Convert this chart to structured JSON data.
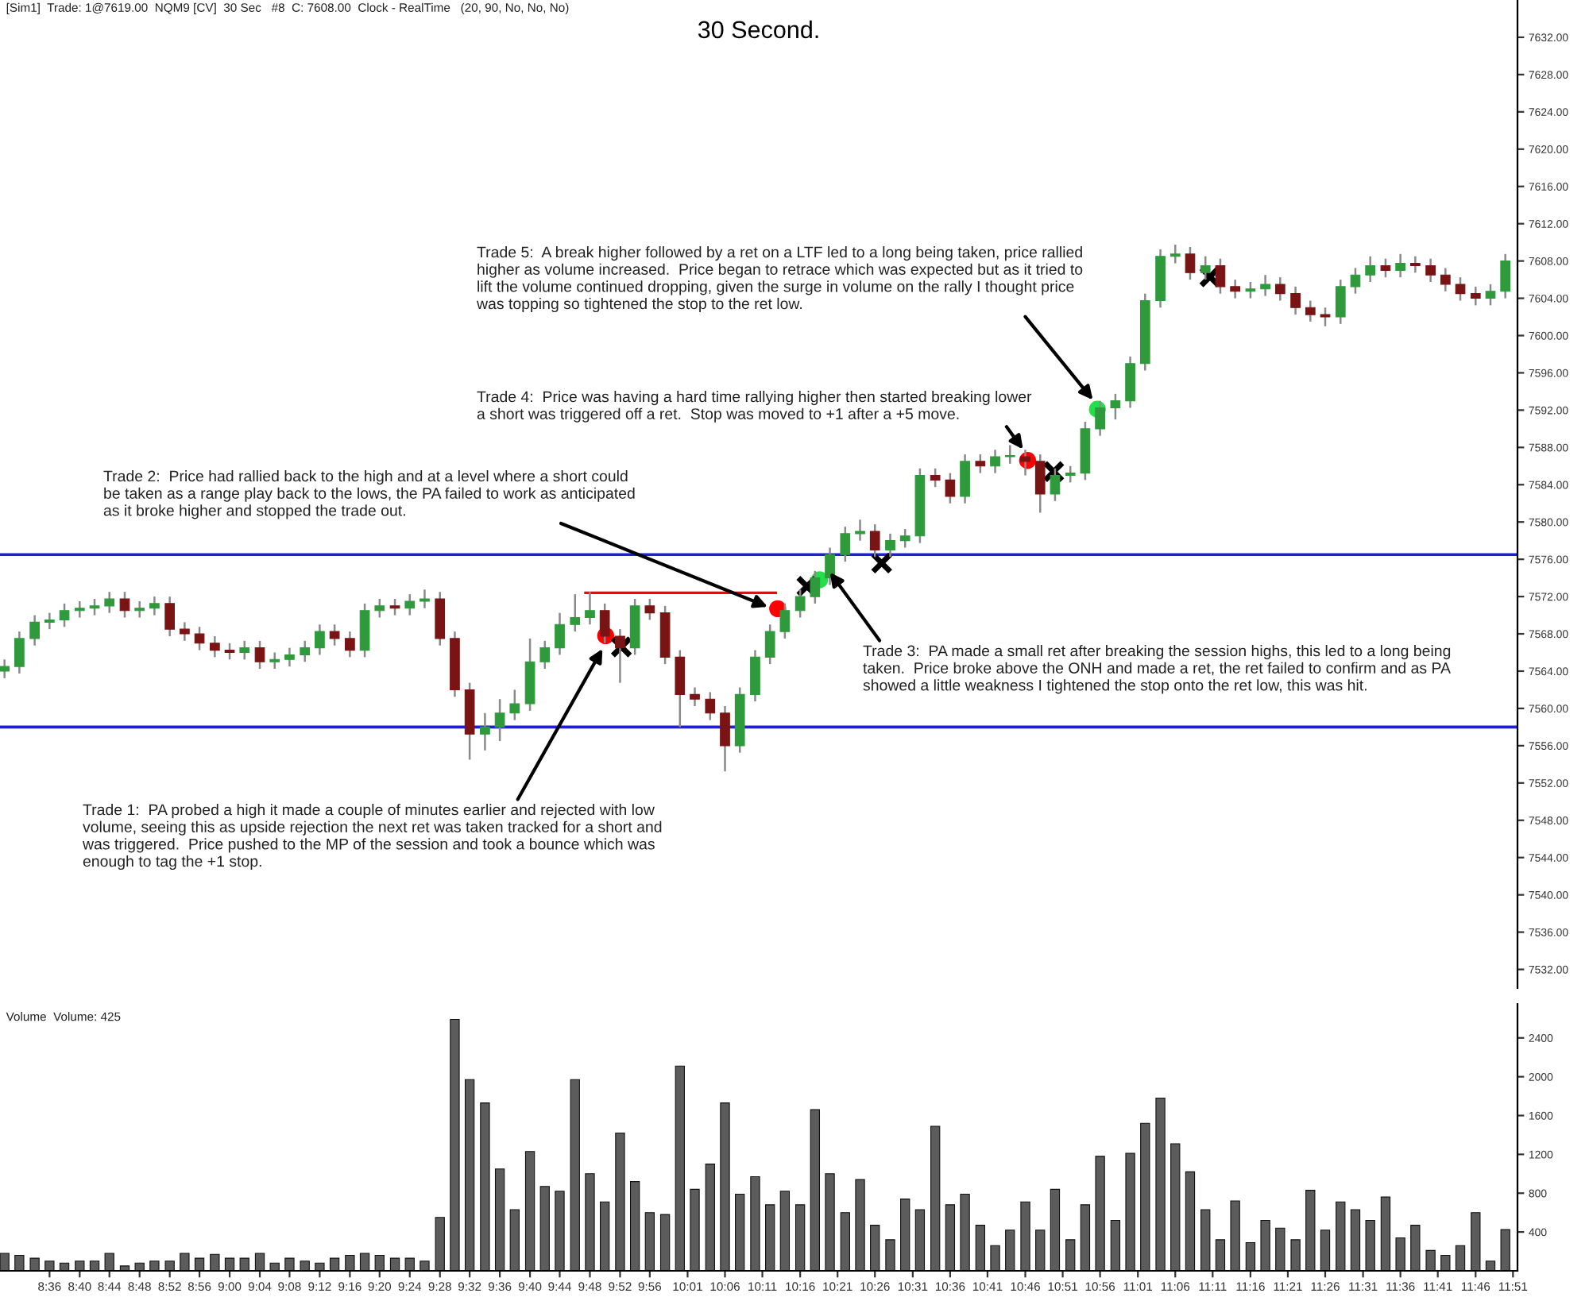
{
  "chart_data": [
    {
      "type": "candlestick",
      "title": "30 Second.",
      "tick_labels": "y",
      "x": [
        8.5,
        8.533,
        8.567,
        8.6,
        8.633,
        8.667,
        8.7,
        8.733,
        8.767,
        8.8,
        8.833,
        8.867,
        8.9,
        8.933,
        8.967,
        9.0,
        9.033,
        9.067,
        9.1,
        9.133,
        9.167,
        9.2,
        9.233,
        9.267,
        9.3,
        9.333,
        9.367,
        9.4,
        9.433,
        9.467,
        9.5,
        9.533,
        9.567,
        9.6,
        9.633,
        9.667,
        9.7,
        9.733,
        9.767,
        9.8,
        9.833,
        9.867,
        9.9,
        9.933,
        9.967,
        10.0,
        10.033,
        10.067,
        10.1,
        10.133,
        10.167,
        10.2,
        10.233,
        10.267,
        10.3,
        10.333,
        10.367,
        10.4,
        10.433,
        10.467,
        10.5,
        10.533,
        10.567,
        10.6,
        10.633,
        10.667,
        10.7,
        10.733,
        10.767,
        10.8,
        10.833,
        10.867,
        10.9,
        10.933,
        10.967,
        11.0,
        11.033,
        11.067,
        11.1,
        11.133,
        11.167,
        11.2,
        11.233,
        11.267,
        11.3,
        11.333,
        11.367,
        11.4,
        11.433,
        11.467,
        11.5,
        11.533,
        11.567,
        11.6,
        11.633,
        11.667,
        11.7,
        11.733,
        11.767,
        11.8,
        11.833
      ],
      "ohlc": [
        [
          7564.0,
          7565.25,
          7563.25,
          7564.5
        ],
        [
          7564.5,
          7568.25,
          7563.75,
          7567.5
        ],
        [
          7567.5,
          7570.0,
          7566.75,
          7569.25
        ],
        [
          7569.25,
          7570.25,
          7568.5,
          7569.5
        ],
        [
          7569.5,
          7571.25,
          7568.75,
          7570.5
        ],
        [
          7570.5,
          7571.5,
          7569.75,
          7570.75
        ],
        [
          7570.75,
          7571.75,
          7570.0,
          7571.0
        ],
        [
          7571.0,
          7572.5,
          7570.25,
          7571.75
        ],
        [
          7571.75,
          7572.5,
          7569.75,
          7570.5
        ],
        [
          7570.5,
          7571.5,
          7569.75,
          7570.75
        ],
        [
          7570.75,
          7572.0,
          7570.0,
          7571.25
        ],
        [
          7571.25,
          7572.0,
          7567.75,
          7568.5
        ],
        [
          7568.5,
          7569.25,
          7567.25,
          7568.0
        ],
        [
          7568.0,
          7568.75,
          7566.25,
          7567.0
        ],
        [
          7567.0,
          7567.75,
          7565.5,
          7566.25
        ],
        [
          7566.25,
          7567.0,
          7565.25,
          7566.0
        ],
        [
          7566.0,
          7567.25,
          7565.25,
          7566.5
        ],
        [
          7566.5,
          7567.25,
          7564.25,
          7565.0
        ],
        [
          7565.0,
          7566.0,
          7564.25,
          7565.25
        ],
        [
          7565.25,
          7566.5,
          7564.5,
          7565.75
        ],
        [
          7565.75,
          7567.25,
          7565.0,
          7566.5
        ],
        [
          7566.5,
          7569.0,
          7565.75,
          7568.25
        ],
        [
          7568.25,
          7569.0,
          7566.75,
          7567.5
        ],
        [
          7567.5,
          7568.25,
          7565.5,
          7566.25
        ],
        [
          7566.25,
          7571.25,
          7565.5,
          7570.5
        ],
        [
          7570.5,
          7571.75,
          7569.75,
          7571.0
        ],
        [
          7571.0,
          7571.75,
          7570.0,
          7570.75
        ],
        [
          7570.75,
          7572.25,
          7570.0,
          7571.5
        ],
        [
          7571.5,
          7572.75,
          7570.75,
          7571.75
        ],
        [
          7571.75,
          7572.5,
          7566.75,
          7567.5
        ],
        [
          7567.5,
          7568.25,
          7561.25,
          7562.0
        ],
        [
          7562.0,
          7562.75,
          7554.5,
          7557.25
        ],
        [
          7557.25,
          7559.5,
          7555.5,
          7558.0
        ],
        [
          7558.0,
          7561.0,
          7556.5,
          7559.5
        ],
        [
          7559.5,
          7562.0,
          7558.75,
          7560.5
        ],
        [
          7560.5,
          7567.5,
          7559.75,
          7565.0
        ],
        [
          7565.0,
          7567.25,
          7564.25,
          7566.5
        ],
        [
          7566.5,
          7570.25,
          7565.75,
          7569.0
        ],
        [
          7569.0,
          7572.25,
          7568.25,
          7569.75
        ],
        [
          7569.75,
          7572.5,
          7569.0,
          7570.5
        ],
        [
          7570.5,
          7571.25,
          7567.0,
          7567.75
        ],
        [
          7567.75,
          7568.5,
          7562.75,
          7566.5
        ],
        [
          7566.5,
          7571.75,
          7565.75,
          7571.0
        ],
        [
          7571.0,
          7571.75,
          7569.5,
          7570.25
        ],
        [
          7570.25,
          7571.0,
          7564.75,
          7565.5
        ],
        [
          7565.5,
          7566.25,
          7558.0,
          7561.5
        ],
        [
          7561.5,
          7562.25,
          7560.25,
          7561.0
        ],
        [
          7561.0,
          7561.75,
          7558.75,
          7559.5
        ],
        [
          7559.5,
          7560.25,
          7553.25,
          7556.0
        ],
        [
          7556.0,
          7562.25,
          7555.25,
          7561.5
        ],
        [
          7561.5,
          7566.25,
          7560.75,
          7565.5
        ],
        [
          7565.5,
          7569.0,
          7564.75,
          7568.25
        ],
        [
          7568.25,
          7571.25,
          7567.5,
          7570.5
        ],
        [
          7570.5,
          7572.75,
          7569.75,
          7572.0
        ],
        [
          7572.0,
          7574.75,
          7571.25,
          7574.0
        ],
        [
          7574.0,
          7577.25,
          7573.25,
          7576.5
        ],
        [
          7576.5,
          7579.5,
          7575.75,
          7578.75
        ],
        [
          7578.75,
          7580.25,
          7578.0,
          7579.0
        ],
        [
          7579.0,
          7579.75,
          7576.25,
          7577.0
        ],
        [
          7577.0,
          7578.75,
          7576.25,
          7578.0
        ],
        [
          7578.0,
          7579.25,
          7577.25,
          7578.5
        ],
        [
          7578.5,
          7585.75,
          7577.75,
          7585.0
        ],
        [
          7585.0,
          7585.75,
          7583.75,
          7584.5
        ],
        [
          7584.5,
          7585.25,
          7582.0,
          7582.75
        ],
        [
          7582.75,
          7587.25,
          7582.0,
          7586.5
        ],
        [
          7586.5,
          7587.25,
          7585.25,
          7586.0
        ],
        [
          7586.0,
          7587.75,
          7585.25,
          7587.0
        ],
        [
          7587.0,
          7588.25,
          7586.25,
          7587.0
        ],
        [
          7587.0,
          7587.75,
          7585.0,
          7586.5
        ],
        [
          7586.5,
          7587.25,
          7581.0,
          7583.0
        ],
        [
          7583.0,
          7585.75,
          7582.25,
          7585.0
        ],
        [
          7585.0,
          7586.0,
          7584.25,
          7585.25
        ],
        [
          7585.25,
          7590.75,
          7584.5,
          7590.0
        ],
        [
          7590.0,
          7593.0,
          7589.25,
          7592.25
        ],
        [
          7592.25,
          7593.75,
          7591.0,
          7593.0
        ],
        [
          7593.0,
          7597.75,
          7592.25,
          7597.0
        ],
        [
          7597.0,
          7604.5,
          7596.25,
          7603.75
        ],
        [
          7603.75,
          7609.25,
          7603.0,
          7608.5
        ],
        [
          7608.5,
          7609.75,
          7607.75,
          7608.75
        ],
        [
          7608.75,
          7609.5,
          7606.0,
          7606.75
        ],
        [
          7606.75,
          7608.5,
          7606.0,
          7607.5
        ],
        [
          7607.5,
          7608.25,
          7604.5,
          7605.25
        ],
        [
          7605.25,
          7606.0,
          7604.0,
          7604.75
        ],
        [
          7604.75,
          7605.75,
          7604.0,
          7605.0
        ],
        [
          7605.0,
          7606.5,
          7604.25,
          7605.5
        ],
        [
          7605.5,
          7606.25,
          7603.75,
          7604.5
        ],
        [
          7604.5,
          7605.25,
          7602.25,
          7603.0
        ],
        [
          7603.0,
          7603.75,
          7601.5,
          7602.25
        ],
        [
          7602.25,
          7603.0,
          7601.0,
          7602.0
        ],
        [
          7602.0,
          7606.0,
          7601.25,
          7605.25
        ],
        [
          7605.25,
          7607.25,
          7604.5,
          7606.5
        ],
        [
          7606.5,
          7608.5,
          7605.75,
          7607.5
        ],
        [
          7607.5,
          7608.25,
          7606.25,
          7607.0
        ],
        [
          7607.0,
          7608.75,
          7606.25,
          7607.75
        ],
        [
          7607.75,
          7608.5,
          7606.75,
          7607.5
        ],
        [
          7607.5,
          7608.25,
          7605.75,
          7606.5
        ],
        [
          7606.5,
          7607.25,
          7604.75,
          7605.5
        ],
        [
          7605.5,
          7606.25,
          7603.75,
          7604.5
        ],
        [
          7604.5,
          7605.25,
          7603.25,
          7604.0
        ],
        [
          7604.0,
          7605.5,
          7603.25,
          7604.75
        ],
        [
          7604.75,
          7608.75,
          7604.0,
          7608.0
        ]
      ],
      "series": [
        {
          "type": "scatter",
          "marker": "circle",
          "color": "#ff0000",
          "x": [
            9.835,
            10.217,
            10.772
          ],
          "values": [
            7567.8,
            7570.7,
            7586.6
          ]
        },
        {
          "type": "scatter",
          "marker": "circle",
          "color": "#22e04a",
          "x": [
            10.31,
            10.927
          ],
          "values": [
            7573.8,
            7592.1
          ]
        },
        {
          "type": "scatter",
          "marker": "cross",
          "color": "#000000",
          "x": [
            9.87,
            10.282,
            10.448,
            10.83,
            11.177
          ],
          "values": [
            7566.6,
            7573.1,
            7575.6,
            7585.4,
            7606.3
          ]
        },
        {
          "type": "line",
          "line_style": "solid",
          "color": "#ff0000",
          "x": [
            9.79,
            10.213
          ],
          "values": [
            7572.4,
            7572.4
          ]
        }
      ],
      "ref_lines": [
        {
          "axis": "y",
          "value": 7576.5,
          "color": "#1f1fd6",
          "line_style": "solid"
        },
        {
          "axis": "y",
          "value": 7558.0,
          "color": "#1f1fd6",
          "line_style": "solid"
        }
      ],
      "xlim": [
        8.49,
        11.86
      ],
      "ylim": [
        7530,
        7636
      ],
      "yticks": [
        {
          "value": 7532,
          "label": "7532.00"
        },
        {
          "value": 7536,
          "label": "7536.00"
        },
        {
          "value": 7540,
          "label": "7540.00"
        },
        {
          "value": 7544,
          "label": "7544.00"
        },
        {
          "value": 7548,
          "label": "7548.00"
        },
        {
          "value": 7552,
          "label": "7552.00"
        },
        {
          "value": 7556,
          "label": "7556.00"
        },
        {
          "value": 7560,
          "label": "7560.00"
        },
        {
          "value": 7564,
          "label": "7564.00"
        },
        {
          "value": 7568,
          "label": "7568.00"
        },
        {
          "value": 7572,
          "label": "7572.00"
        },
        {
          "value": 7576,
          "label": "7576.00"
        },
        {
          "value": 7580,
          "label": "7580.00"
        },
        {
          "value": 7584,
          "label": "7584.00"
        },
        {
          "value": 7588,
          "label": "7588.00"
        },
        {
          "value": 7592,
          "label": "7592.00"
        },
        {
          "value": 7596,
          "label": "7596.00"
        },
        {
          "value": 7600,
          "label": "7600.00"
        },
        {
          "value": 7604,
          "label": "7604.00"
        },
        {
          "value": 7608,
          "label": "7608.00"
        },
        {
          "value": 7612,
          "label": "7612.00"
        },
        {
          "value": 7616,
          "label": "7616.00"
        },
        {
          "value": 7620,
          "label": "7620.00"
        },
        {
          "value": 7624,
          "label": "7624.00"
        },
        {
          "value": 7628,
          "label": "7628.00"
        },
        {
          "value": 7632,
          "label": "7632.00"
        }
      ],
      "annotations": [
        "[Sim1]  Trade: 1@7619.00  NQM9 [CV]  30 Sec   #8  C: 7608.00  Clock - RealTime   (20, 90, No, No, No)",
        {
          "text": "Trade 5:  A break higher followed by a ret on a LTF led to a long being taken, price rallied\nhigher as volume increased.  Price began to retrace which was expected but as it tried to\nlift the volume continued dropping, given the surge in volume on the rally I thought price\nwas topping so tightened the stop to the ret low.",
          "x": 10.917,
          "y": 7593.1
        },
        {
          "text": "Trade 4:  Price was having a hard time rallying higher then started breaking lower\na short was triggered off a ret.  Stop was moved to +1 after a +5 move.",
          "x": 10.762,
          "y": 7587.8
        },
        {
          "text": "Trade 2:  Price had rallied back to the high and at a level where a short could\nbe taken as a range play back to the lows, the PA failed to work as anticipated\nas it broke higher and stopped the trade out.",
          "x": 10.195,
          "y": 7570.9
        },
        {
          "text": "Trade 3:  PA made a small ret after breaking the session highs, this led to a long being\ntaken.  Price broke above the ONH and made a ret, the ret failed to confirm and as PA\nshowed a little weakness I tightened the stop onto the ret low, this was hit.",
          "x": 10.333,
          "y": 7574.6
        },
        {
          "text": "Trade 1:  PA probed a high it made a couple of minutes earlier and rejected with low\nvolume, seeing this as upside rejection the next ret was taken tracked for a short and\nwas triggered.  Price pushed to the MP of the session and took a bounce which was\nenough to tag the +1 stop.",
          "x": 9.828,
          "y": 7566.4
        }
      ]
    },
    {
      "type": "bar",
      "color": "#5c5c5c",
      "x": [
        8.5,
        8.533,
        8.567,
        8.6,
        8.633,
        8.667,
        8.7,
        8.733,
        8.767,
        8.8,
        8.833,
        8.867,
        8.9,
        8.933,
        8.967,
        9.0,
        9.033,
        9.067,
        9.1,
        9.133,
        9.167,
        9.2,
        9.233,
        9.267,
        9.3,
        9.333,
        9.367,
        9.4,
        9.433,
        9.467,
        9.5,
        9.533,
        9.567,
        9.6,
        9.633,
        9.667,
        9.7,
        9.733,
        9.767,
        9.8,
        9.833,
        9.867,
        9.9,
        9.933,
        9.967,
        10.0,
        10.033,
        10.067,
        10.1,
        10.133,
        10.167,
        10.2,
        10.233,
        10.267,
        10.3,
        10.333,
        10.367,
        10.4,
        10.433,
        10.467,
        10.5,
        10.533,
        10.567,
        10.6,
        10.633,
        10.667,
        10.7,
        10.733,
        10.767,
        10.8,
        10.833,
        10.867,
        10.9,
        10.933,
        10.967,
        11.0,
        11.033,
        11.067,
        11.1,
        11.133,
        11.167,
        11.2,
        11.233,
        11.267,
        11.3,
        11.333,
        11.367,
        11.4,
        11.433,
        11.467,
        11.5,
        11.533,
        11.567,
        11.6,
        11.633,
        11.667,
        11.7,
        11.733,
        11.767,
        11.8,
        11.833
      ],
      "values": [
        180,
        160,
        130,
        100,
        80,
        100,
        100,
        180,
        50,
        80,
        100,
        100,
        180,
        130,
        170,
        130,
        130,
        180,
        80,
        130,
        100,
        80,
        130,
        160,
        180,
        160,
        130,
        130,
        100,
        550,
        2590,
        1970,
        1730,
        1050,
        630,
        1230,
        870,
        820,
        1970,
        1000,
        710,
        1420,
        920,
        600,
        580,
        2110,
        840,
        1100,
        1730,
        790,
        970,
        680,
        820,
        680,
        1660,
        1000,
        600,
        940,
        470,
        320,
        740,
        630,
        1490,
        680,
        790,
        470,
        260,
        420,
        710,
        420,
        840,
        320,
        680,
        1180,
        520,
        1210,
        1520,
        1780,
        1310,
        1020,
        630,
        320,
        720,
        290,
        520,
        440,
        320,
        830,
        420,
        710,
        630,
        520,
        760,
        340,
        470,
        210,
        160,
        260,
        600,
        100,
        425
      ],
      "xlim": [
        8.49,
        11.86
      ],
      "xticks": [
        {
          "value": 8.6,
          "label": "8:36"
        },
        {
          "value": 8.667,
          "label": "8:40"
        },
        {
          "value": 8.733,
          "label": "8:44"
        },
        {
          "value": 8.8,
          "label": "8:48"
        },
        {
          "value": 8.867,
          "label": "8:52"
        },
        {
          "value": 8.933,
          "label": "8:56"
        },
        {
          "value": 9.0,
          "label": "9:00"
        },
        {
          "value": 9.067,
          "label": "9:04"
        },
        {
          "value": 9.133,
          "label": "9:08"
        },
        {
          "value": 9.2,
          "label": "9:12"
        },
        {
          "value": 9.267,
          "label": "9:16"
        },
        {
          "value": 9.333,
          "label": "9:20"
        },
        {
          "value": 9.4,
          "label": "9:24"
        },
        {
          "value": 9.467,
          "label": "9:28"
        },
        {
          "value": 9.533,
          "label": "9:32"
        },
        {
          "value": 9.6,
          "label": "9:36"
        },
        {
          "value": 9.667,
          "label": "9:40"
        },
        {
          "value": 9.733,
          "label": "9:44"
        },
        {
          "value": 9.8,
          "label": "9:48"
        },
        {
          "value": 9.867,
          "label": "9:52"
        },
        {
          "value": 9.933,
          "label": "9:56"
        },
        {
          "value": 10.017,
          "label": "10:01"
        },
        {
          "value": 10.1,
          "label": "10:06"
        },
        {
          "value": 10.183,
          "label": "10:11"
        },
        {
          "value": 10.267,
          "label": "10:16"
        },
        {
          "value": 10.35,
          "label": "10:21"
        },
        {
          "value": 10.433,
          "label": "10:26"
        },
        {
          "value": 10.517,
          "label": "10:31"
        },
        {
          "value": 10.6,
          "label": "10:36"
        },
        {
          "value": 10.683,
          "label": "10:41"
        },
        {
          "value": 10.767,
          "label": "10:46"
        },
        {
          "value": 10.85,
          "label": "10:51"
        },
        {
          "value": 10.933,
          "label": "10:56"
        },
        {
          "value": 11.017,
          "label": "11:01"
        },
        {
          "value": 11.1,
          "label": "11:06"
        },
        {
          "value": 11.183,
          "label": "11:11"
        },
        {
          "value": 11.267,
          "label": "11:16"
        },
        {
          "value": 11.35,
          "label": "11:21"
        },
        {
          "value": 11.433,
          "label": "11:26"
        },
        {
          "value": 11.517,
          "label": "11:31"
        },
        {
          "value": 11.6,
          "label": "11:36"
        },
        {
          "value": 11.683,
          "label": "11:41"
        },
        {
          "value": 11.767,
          "label": "11:46"
        },
        {
          "value": 11.85,
          "label": "11:51"
        }
      ],
      "ylim": [
        0,
        2750
      ],
      "yticks": [
        400,
        800,
        1200,
        1600,
        2000,
        2400
      ],
      "annotations": [
        "Volume  Volume: 425"
      ]
    }
  ]
}
